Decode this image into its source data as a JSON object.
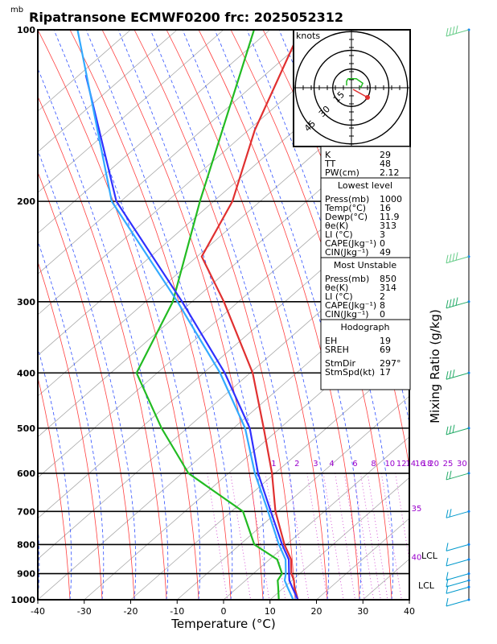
{
  "title": "Ripatransone ECMWF0200  frc: 2025052312",
  "p_unit": "mb",
  "xlabel": "Temperature (°C)",
  "right_label": "Mixing Ratio (g/kg)",
  "hodo_unit": "knots",
  "hodo_rings": [
    "15",
    "30",
    "45"
  ],
  "lcl_labels": [
    "LCL",
    "LCL"
  ],
  "mixing_ratio_labels": [
    {
      "label": "1",
      "x": -3.5,
      "p": 575
    },
    {
      "label": "2",
      "x": 1.5,
      "p": 575
    },
    {
      "label": "3",
      "x": 5.5,
      "p": 575
    },
    {
      "label": "4",
      "x": 9.0,
      "p": 575
    },
    {
      "label": "6",
      "x": 14.0,
      "p": 575
    },
    {
      "label": "8",
      "x": 18.0,
      "p": 575
    },
    {
      "label": "10",
      "x": 21.5,
      "p": 575
    },
    {
      "label": "12",
      "x": 24.0,
      "p": 575
    },
    {
      "label": "14",
      "x": 26.0,
      "p": 575
    },
    {
      "label": "16",
      "x": 28.0,
      "p": 575
    },
    {
      "label": "18",
      "x": 29.5,
      "p": 575
    },
    {
      "label": "20",
      "x": 31.0,
      "p": 575
    },
    {
      "label": "25",
      "x": 34.0,
      "p": 575
    },
    {
      "label": "30",
      "x": 37.0,
      "p": 575
    },
    {
      "label": "35",
      "x": 37.5,
      "p": 690
    },
    {
      "label": "40",
      "x": 37.5,
      "p": 840
    }
  ],
  "indices": {
    "top": [
      {
        "k": "K",
        "v": "29"
      },
      {
        "k": "TT",
        "v": "48"
      },
      {
        "k": "PW(cm)",
        "v": "2.12"
      }
    ],
    "lowest_title": "Lowest level",
    "lowest": [
      {
        "k": "Press(mb)",
        "v": "1000"
      },
      {
        "k": "Temp(°C)",
        "v": "16"
      },
      {
        "k": "Dewp(°C)",
        "v": "11.9"
      },
      {
        "k": "θe(K)",
        "v": "313"
      },
      {
        "k": "LI (°C)",
        "v": "3"
      },
      {
        "k": "CAPE(Jkg⁻¹)",
        "v": "0"
      },
      {
        "k": "CIN(Jkg⁻¹)",
        "v": "49"
      }
    ],
    "unstable_title": "Most Unstable",
    "unstable": [
      {
        "k": "Press(mb)",
        "v": "850"
      },
      {
        "k": "θe(K)",
        "v": "314"
      },
      {
        "k": "LI (°C)",
        "v": "2"
      },
      {
        "k": "CAPE(Jkg⁻¹)",
        "v": "8"
      },
      {
        "k": "CIN(Jkg⁻¹)",
        "v": "0"
      }
    ],
    "hodo_title": "Hodograph",
    "hodo": [
      {
        "k": "EH",
        "v": "19"
      },
      {
        "k": "SREH",
        "v": "69"
      },
      {
        "k": "StmDir",
        "v": "297°"
      },
      {
        "k": "StmSpd(kt)",
        "v": "17"
      }
    ]
  },
  "chart_data": {
    "type": "line",
    "title": "Ripatransone ECMWF0200  frc: 2025052312",
    "xlabel": "Temperature (°C)",
    "ylabel": "mb",
    "xlim": [
      -40,
      40
    ],
    "x_ticks": [
      "-40",
      "-30",
      "-20",
      "-10",
      "0",
      "10",
      "20",
      "30",
      "40"
    ],
    "p_ticks": [
      "100",
      "200",
      "300",
      "400",
      "500",
      "600",
      "700",
      "800",
      "900",
      "1000"
    ],
    "ylim": [
      1000,
      100
    ],
    "skew": true,
    "log_pressure": true,
    "series": [
      {
        "color": "#e03030",
        "p": [
          1000,
          950,
          925,
          900,
          850,
          800,
          700,
          600,
          500,
          400,
          300,
          250,
          200,
          150,
          100
        ],
        "x": [
          16,
          13.5,
          12.5,
          11,
          9,
          5.5,
          -1,
          -7,
          -15,
          -25,
          -41,
          -52,
          -53,
          -58,
          -62
        ]
      },
      {
        "color": "#22bb22",
        "p": [
          1000,
          950,
          925,
          900,
          850,
          800,
          700,
          600,
          500,
          400,
          300,
          200,
          100
        ],
        "x": [
          11.9,
          10,
          9,
          9,
          6,
          -1,
          -8,
          -25,
          -37,
          -50,
          -52,
          -60,
          -72
        ]
      },
      {
        "color": "#3030ff",
        "p": [
          1000,
          950,
          925,
          900,
          850,
          800,
          700,
          600,
          500,
          400,
          300,
          200,
          120
        ],
        "x": [
          16,
          13,
          11.5,
          10.5,
          8.5,
          5,
          -2,
          -10,
          -18,
          -31,
          -50,
          -78,
          -102
        ]
      },
      {
        "color": "#33aaff",
        "p": [
          1000,
          950,
          925,
          900,
          850,
          800,
          700,
          600,
          500,
          400,
          300,
          200,
          100
        ],
        "x": [
          15,
          12,
          10.5,
          9.8,
          7.8,
          4.3,
          -2.6,
          -10.7,
          -19,
          -32,
          -51,
          -79,
          -110
        ]
      }
    ],
    "wind_profile": {
      "p": [
        1000,
        950,
        925,
        900,
        850,
        800,
        700,
        600,
        500,
        400,
        300,
        250,
        100
      ],
      "speed_kt": [
        5,
        10,
        10,
        10,
        10,
        10,
        15,
        20,
        30,
        30,
        35,
        40,
        40
      ],
      "direction_deg": [
        180,
        240,
        250,
        270,
        300,
        300,
        290,
        280,
        270,
        270,
        265,
        265,
        260
      ]
    },
    "hodograph": {
      "unit": "knots",
      "rings_kt": [
        15,
        30,
        45
      ],
      "u_kt": [
        -3,
        -3,
        -2,
        0,
        3,
        5,
        7,
        6,
        5
      ],
      "v_kt": [
        2,
        6,
        8,
        8,
        8,
        6,
        4,
        1,
        0
      ]
    }
  }
}
